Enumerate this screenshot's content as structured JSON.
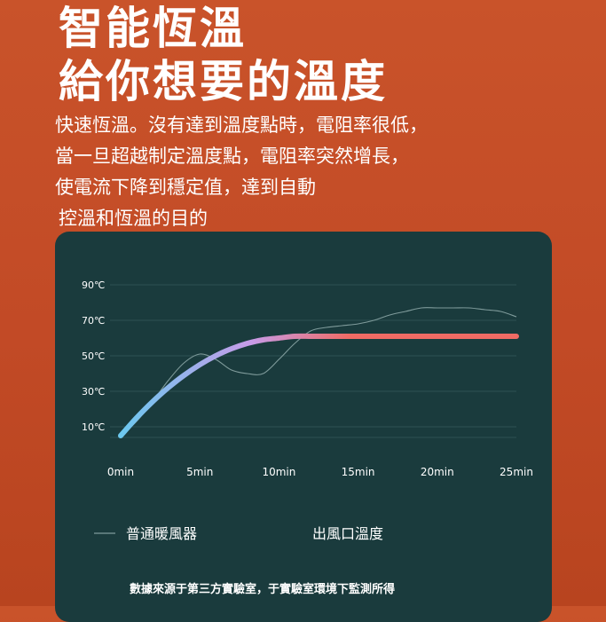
{
  "headline": {
    "line1": "智能恆溫",
    "line2": "給你想要的溫度"
  },
  "description": [
    "快速恆溫。沒有達到溫度點時，電阻率很低，",
    "當一旦超越制定溫度點，電阻率突然增長，",
    "使電流下降到穩定值，達到自動",
    "控溫和恆溫的目的"
  ],
  "footnote": "數據來源于第三方實驗室，于實驗室環境下監測所得",
  "colors": {
    "background": "#c24a26",
    "card": "#1a3b3d",
    "grid": "#2f5254",
    "series_normal": "#7f9b9b",
    "gradient_start": "#6cc8ef",
    "gradient_mid": "#c79be8",
    "gradient_end": "#ef6b64"
  },
  "chart_data": {
    "type": "line",
    "title": "",
    "xlabel": "",
    "ylabel": "",
    "x_ticks": [
      "0min",
      "5min",
      "10min",
      "15min",
      "20min",
      "25min"
    ],
    "y_ticks": [
      "90℃",
      "70℃",
      "50℃",
      "30℃",
      "10℃"
    ],
    "xlim": [
      0,
      25
    ],
    "ylim": [
      10,
      90
    ],
    "grid": true,
    "legend_placement": "bottom",
    "series": [
      {
        "name": "普通暖風器",
        "style": "thin-line",
        "x": [
          0,
          1,
          2,
          3,
          4,
          5,
          6,
          7,
          8,
          9,
          10,
          11,
          12,
          13,
          14,
          15,
          16,
          17,
          18,
          19,
          20,
          21,
          22,
          23,
          24,
          25
        ],
        "y": [
          5,
          13,
          24,
          36,
          46,
          51,
          48,
          42,
          40,
          40,
          48,
          57,
          64,
          66,
          67,
          68,
          70,
          73,
          75,
          77,
          77,
          77,
          77,
          76,
          75,
          72
        ]
      },
      {
        "name": "出風口溫度",
        "style": "gradient-line",
        "x": [
          0,
          1,
          2,
          3,
          4,
          5,
          6,
          7,
          8,
          9,
          10,
          11,
          12,
          13,
          14,
          15,
          16,
          17,
          18,
          19,
          20,
          21,
          22,
          23,
          24,
          25
        ],
        "y": [
          5,
          15,
          24,
          32,
          39,
          45,
          50,
          54,
          57,
          59,
          60,
          61,
          61,
          61,
          61,
          61,
          61,
          61,
          61,
          61,
          61,
          61,
          61,
          61,
          61,
          61
        ]
      }
    ]
  }
}
